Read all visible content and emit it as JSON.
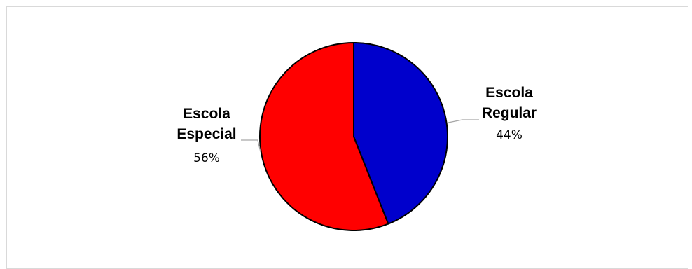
{
  "chart_data": {
    "type": "pie",
    "title": "",
    "legend": "none",
    "slices": [
      {
        "name_lines": [
          "Escola",
          "Regular"
        ],
        "value": 44,
        "label": "44%",
        "color": "#0000cc"
      },
      {
        "name_lines": [
          "Escola",
          "Especial"
        ],
        "value": 56,
        "label": "56%",
        "color": "#ff0000"
      }
    ]
  }
}
